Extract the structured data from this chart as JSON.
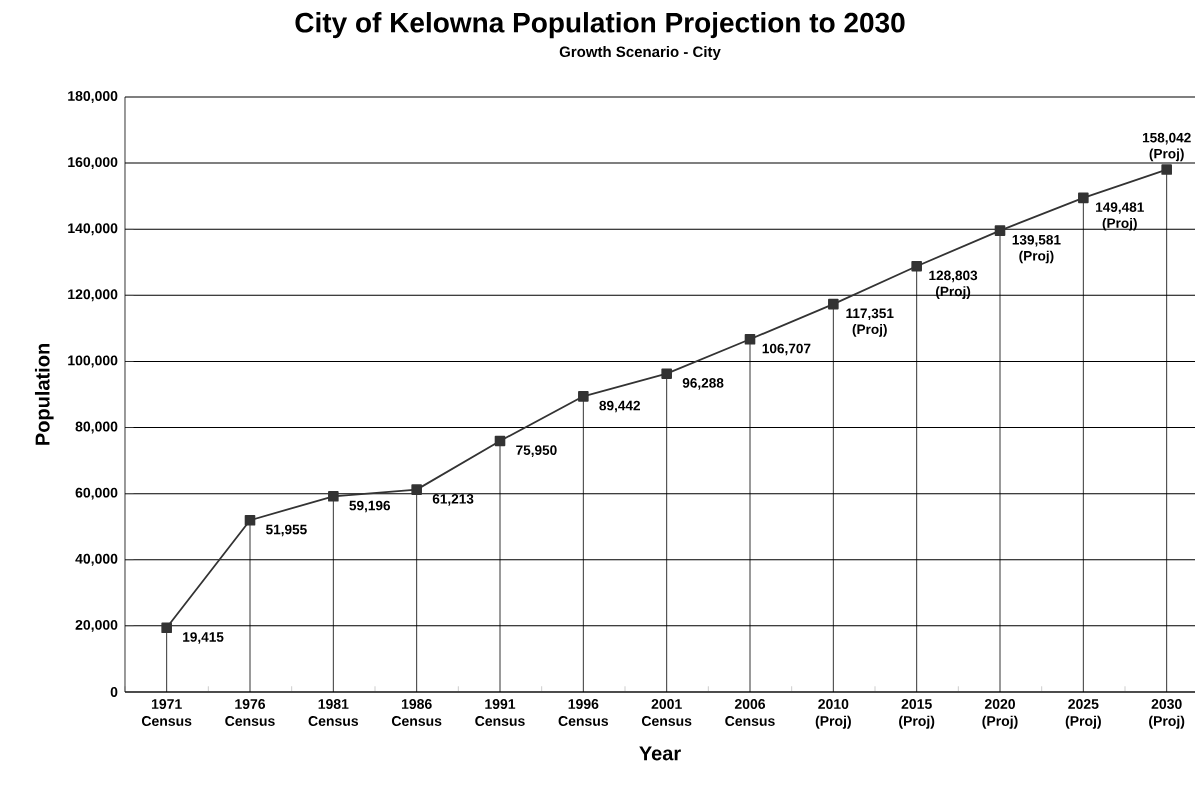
{
  "chart_data": {
    "type": "line",
    "title": "City of Kelowna Population Projection to 2030",
    "subtitle": "Growth Scenario - City",
    "xlabel": "Year",
    "ylabel": "Population",
    "categories": [
      "1971 Census",
      "1976 Census",
      "1981 Census",
      "1986 Census",
      "1991 Census",
      "1996 Census",
      "2001 Census",
      "2006 Census",
      "2010 (Proj)",
      "2015 (Proj)",
      "2020 (Proj)",
      "2025 (Proj)",
      "2030 (Proj)"
    ],
    "values": [
      19415,
      51955,
      59196,
      61213,
      75950,
      89442,
      96288,
      106707,
      117351,
      128803,
      139581,
      149481,
      158042
    ],
    "value_labels": [
      "19,415",
      "51,955",
      "59,196",
      "61,213",
      "75,950",
      "89,442",
      "96,288",
      "106,707",
      "117,351 (Proj)",
      "128,803 (Proj)",
      "139,581 (Proj)",
      "149,481 (Proj)",
      "158,042 (Proj)"
    ],
    "color": "#333333",
    "marker": "square",
    "line_style": "solid",
    "grid": true,
    "ylim": [
      0,
      180000
    ],
    "yticks": [
      {
        "value": 0,
        "label": "0"
      },
      {
        "value": 20000,
        "label": "20,000"
      },
      {
        "value": 40000,
        "label": "40,000"
      },
      {
        "value": 60000,
        "label": "60,000"
      },
      {
        "value": 80000,
        "label": "80,000"
      },
      {
        "value": 100000,
        "label": "100,000"
      },
      {
        "value": 120000,
        "label": "120,000"
      },
      {
        "value": 140000,
        "label": "140,000"
      },
      {
        "value": 160000,
        "label": "160,000"
      },
      {
        "value": 180000,
        "label": "180,000"
      }
    ]
  }
}
